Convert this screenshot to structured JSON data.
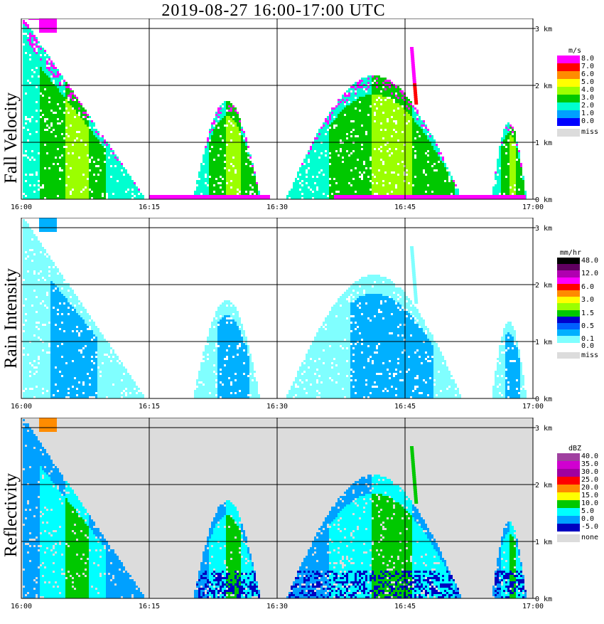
{
  "title": "2019-08-27   16:00-17:00 UTC",
  "chart_data": [
    {
      "type": "heatmap",
      "name": "Fall Velocity",
      "x_ticks": [
        "16:00",
        "16:15",
        "16:30",
        "16:45",
        "17:00"
      ],
      "y_ticks": [
        "0 km",
        "1 km",
        "2 km",
        "3 km"
      ],
      "xlim": [
        "16:00",
        "17:00"
      ],
      "ylim_km": [
        0,
        3.2
      ],
      "grid": true,
      "legend": {
        "unit": "m/s",
        "levels": [
          {
            "label": "8.0",
            "color": "#ff00ff"
          },
          {
            "label": "7.0",
            "color": "#ff0000"
          },
          {
            "label": "6.0",
            "color": "#ff8c00"
          },
          {
            "label": "5.0",
            "color": "#ffff00"
          },
          {
            "label": "4.0",
            "color": "#9bff00"
          },
          {
            "label": "3.0",
            "color": "#00c800"
          },
          {
            "label": "2.0",
            "color": "#00ffd0"
          },
          {
            "label": "1.0",
            "color": "#00a0ff"
          },
          {
            "label": "0.0",
            "color": "#0000ff"
          },
          {
            "label": "miss",
            "color": "#dcdcdc"
          }
        ]
      }
    },
    {
      "type": "heatmap",
      "name": "Rain Intensity",
      "x_ticks": [
        "16:00",
        "16:15",
        "16:30",
        "16:45",
        "17:00"
      ],
      "y_ticks": [
        "0 km",
        "1 km",
        "2 km",
        "3 km"
      ],
      "xlim": [
        "16:00",
        "17:00"
      ],
      "ylim_km": [
        0,
        3.2
      ],
      "grid": true,
      "legend": {
        "unit": "mm/hr",
        "levels": [
          {
            "label": "48.0",
            "color": "#000000"
          },
          {
            "label": "",
            "color": "#600060"
          },
          {
            "label": "12.0",
            "color": "#b000b0"
          },
          {
            "label": "",
            "color": "#ff00ff"
          },
          {
            "label": "6.0",
            "color": "#ff0000"
          },
          {
            "label": "",
            "color": "#ff8c00"
          },
          {
            "label": "3.0",
            "color": "#ffff00"
          },
          {
            "label": "",
            "color": "#9bff00"
          },
          {
            "label": "1.5",
            "color": "#00c800"
          },
          {
            "label": "",
            "color": "#0000cc"
          },
          {
            "label": "0.5",
            "color": "#0060ff"
          },
          {
            "label": "",
            "color": "#00b0ff"
          },
          {
            "label": "0.1",
            "color": "#80ffff"
          },
          {
            "label": "0.0",
            "color": "#ffffff"
          },
          {
            "label": "miss",
            "color": "#dcdcdc"
          }
        ]
      }
    },
    {
      "type": "heatmap",
      "name": "Reflectivity",
      "x_ticks": [
        "16:00",
        "16:15",
        "16:30",
        "16:45",
        "17:00"
      ],
      "y_ticks": [
        "0 km",
        "1 km",
        "2 km",
        "3 km"
      ],
      "xlim": [
        "16:00",
        "17:00"
      ],
      "ylim_km": [
        0,
        3.2
      ],
      "grid": true,
      "legend": {
        "unit": "dBZ",
        "levels": [
          {
            "label": "40.0",
            "color": "#a040a0"
          },
          {
            "label": "35.0",
            "color": "#d000d0"
          },
          {
            "label": "30.0",
            "color": "#a000a0"
          },
          {
            "label": "25.0",
            "color": "#ff0000"
          },
          {
            "label": "20.0",
            "color": "#ff8c00"
          },
          {
            "label": "15.0",
            "color": "#ffff00"
          },
          {
            "label": "10.0",
            "color": "#00c800"
          },
          {
            "label": "5.0",
            "color": "#00ffff"
          },
          {
            "label": "0.0",
            "color": "#00a0ff"
          },
          {
            "label": "-5.0",
            "color": "#0000c0"
          },
          {
            "label": "none",
            "color": "#dcdcdc"
          }
        ]
      }
    }
  ]
}
